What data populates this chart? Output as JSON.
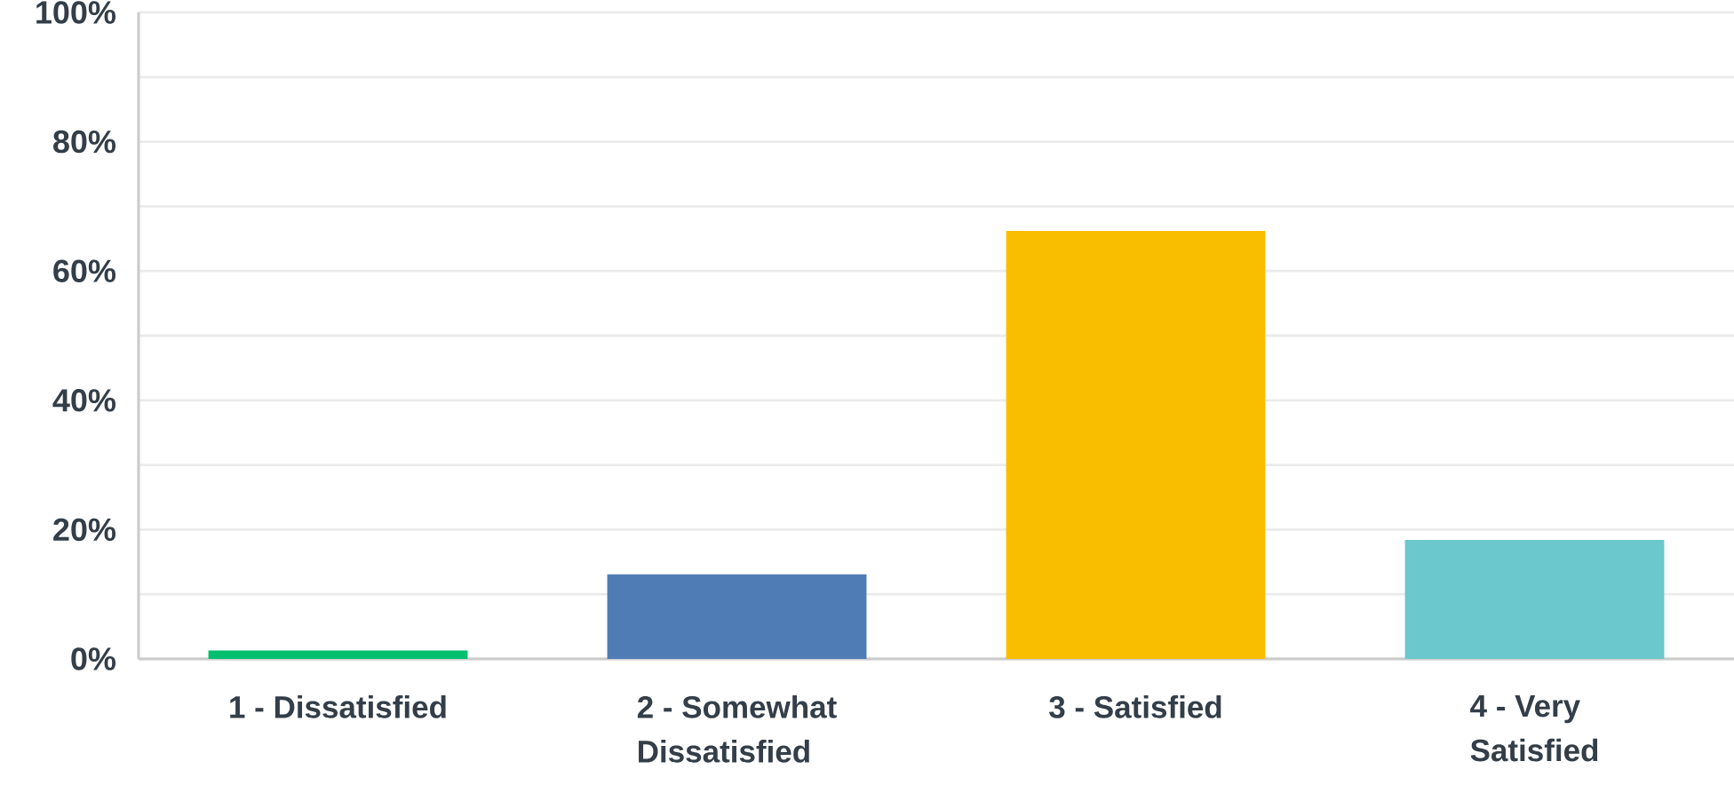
{
  "chart_data": {
    "type": "bar",
    "categories": [
      "1 - Dissatisfied",
      "2 - Somewhat Dissatisfied",
      "3 - Satisfied",
      "4 - Very Satisfied"
    ],
    "values": [
      1.3,
      13.1,
      66.2,
      18.4
    ],
    "colors": [
      "#00bf6f",
      "#507cb6",
      "#f9be00",
      "#6bc8cd"
    ],
    "ylim": [
      0,
      100
    ],
    "yticks": [
      {
        "value": 0,
        "label": "0%"
      },
      {
        "value": 10,
        "label": null
      },
      {
        "value": 20,
        "label": "20%"
      },
      {
        "value": 30,
        "label": null
      },
      {
        "value": 40,
        "label": "40%"
      },
      {
        "value": 50,
        "label": null
      },
      {
        "value": 60,
        "label": "60%"
      },
      {
        "value": 70,
        "label": null
      },
      {
        "value": 80,
        "label": "80%"
      },
      {
        "value": 90,
        "label": null
      },
      {
        "value": 100,
        "label": "100%"
      }
    ],
    "grid": "y"
  }
}
